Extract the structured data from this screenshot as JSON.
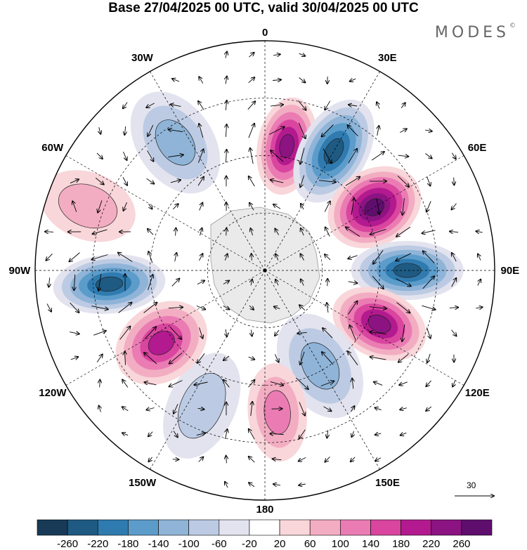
{
  "title": "Base 27/04/2025 00 UTC, valid 30/04/2025 00 UTC",
  "brand": "MODES",
  "brand_mark": "©",
  "longitude_labels": [
    {
      "id": "lon-0",
      "text": "0",
      "angle": 0
    },
    {
      "id": "lon-30e",
      "text": "30E",
      "angle": 30
    },
    {
      "id": "lon-60e",
      "text": "60E",
      "angle": 60
    },
    {
      "id": "lon-90e",
      "text": "90E",
      "angle": 90
    },
    {
      "id": "lon-120e",
      "text": "120E",
      "angle": 120
    },
    {
      "id": "lon-150e",
      "text": "150E",
      "angle": 150
    },
    {
      "id": "lon-180",
      "text": "180",
      "angle": 180
    },
    {
      "id": "lon-150w",
      "text": "150W",
      "angle": 210
    },
    {
      "id": "lon-120w",
      "text": "120W",
      "angle": 240
    },
    {
      "id": "lon-90w",
      "text": "90W",
      "angle": 270
    },
    {
      "id": "lon-60w",
      "text": "60W",
      "angle": 300
    },
    {
      "id": "lon-30w",
      "text": "30W",
      "angle": 330
    }
  ],
  "reference_vector_label": "30",
  "colorbar": {
    "labels": [
      "-260",
      "-220",
      "-180",
      "-140",
      "-100",
      "-60",
      "-20",
      "20",
      "60",
      "100",
      "140",
      "180",
      "220",
      "260"
    ],
    "colors": [
      "#183a56",
      "#1e5a82",
      "#2f7bb0",
      "#5c9ccb",
      "#8fb4d8",
      "#bccbe3",
      "#e2e3ee",
      "#ffffff",
      "#f8d6da",
      "#f3adc2",
      "#ea7cb3",
      "#d9459f",
      "#b31a8f",
      "#8b1382",
      "#5f0e6e"
    ]
  },
  "anomaly_centers": [
    {
      "name": "positive-center-n",
      "lon": 10,
      "colat": 0.55,
      "level": 13
    },
    {
      "name": "negative-center-ne",
      "lon": 30,
      "colat": 0.6,
      "level": 1
    },
    {
      "name": "positive-center-e",
      "lon": 60,
      "colat": 0.55,
      "level": 14
    },
    {
      "name": "negative-center-e",
      "lon": 90,
      "colat": 0.62,
      "level": 1
    },
    {
      "name": "positive-center-se",
      "lon": 115,
      "colat": 0.55,
      "level": 13
    },
    {
      "name": "negative-center-sse",
      "lon": 150,
      "colat": 0.48,
      "level": 4
    },
    {
      "name": "positive-center-s",
      "lon": 175,
      "colat": 0.62,
      "level": 10
    },
    {
      "name": "negative-center-ssw",
      "lon": 205,
      "colat": 0.65,
      "level": 5
    },
    {
      "name": "positive-center-sw",
      "lon": 235,
      "colat": 0.55,
      "level": 12
    },
    {
      "name": "negative-center-w",
      "lon": 265,
      "colat": 0.68,
      "level": 1
    },
    {
      "name": "positive-center-wnw",
      "lon": 290,
      "colat": 0.82,
      "level": 9
    },
    {
      "name": "negative-center-nw",
      "lon": 325,
      "colat": 0.68,
      "level": 4
    }
  ]
}
